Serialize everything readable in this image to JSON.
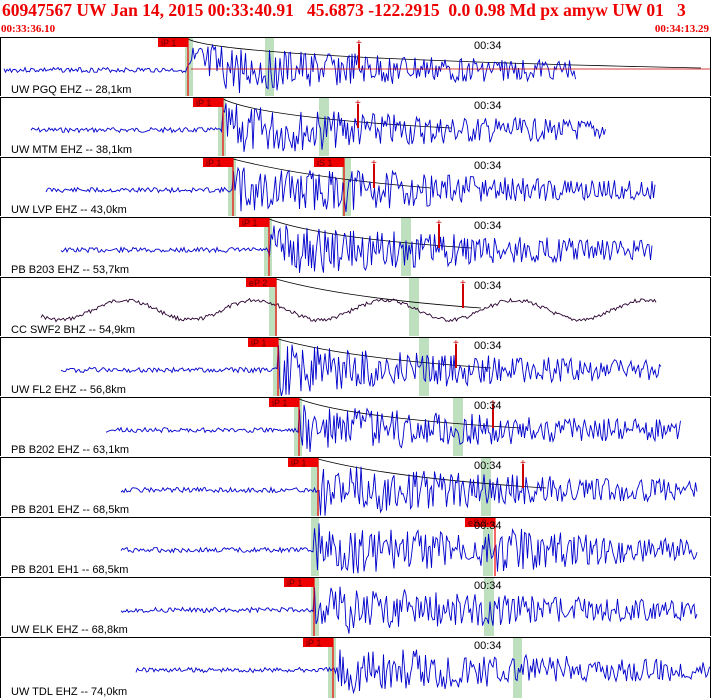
{
  "header": {
    "title": "60947567 UW Jan 14, 2015 00:33:40.91   45.6873 -122.2915  0.0 0.98 Md px amyw UW 01   3",
    "start_time": "00:33:36.10",
    "end_time": "00:34:13.29"
  },
  "colors": {
    "header_text": "#ee0000",
    "trace_blue": "#0000cc",
    "trace_dark": "#2a0030",
    "pick_marker": "#ee0000",
    "window_band": "#bfe0bf",
    "coda_curve": "#000000",
    "amp_line": "#cc0000"
  },
  "panels": [
    {
      "label": "UW PGQ EHZ -- 28,1km",
      "time_label": "00:34",
      "color": "trace_blue",
      "picks": [
        "iP 1"
      ],
      "seed": 3
    },
    {
      "label": "UW MTM EHZ -- 38,1km",
      "time_label": "00:34",
      "color": "trace_blue",
      "picks": [
        "iP 1"
      ],
      "seed": 7
    },
    {
      "label": "UW LVP EHZ -- 43,0km",
      "time_label": "00:34",
      "color": "trace_blue",
      "picks": [
        "iP 1",
        "iS 1"
      ],
      "seed": 11
    },
    {
      "label": "PB B203 EHZ -- 53,7km",
      "time_label": "00:34",
      "color": "trace_blue",
      "picks": [
        "iP 1"
      ],
      "seed": 13
    },
    {
      "label": "CC SWF2 BHZ -- 54,9km",
      "time_label": "00:34",
      "color": "trace_dark",
      "picks": [
        "eP 2"
      ],
      "seed": 17
    },
    {
      "label": "UW FL2 EHZ -- 56,8km",
      "time_label": "00:34",
      "color": "trace_blue",
      "picks": [
        "iP 1"
      ],
      "seed": 19
    },
    {
      "label": "PB B202 EHZ -- 63,1km",
      "time_label": "00:34",
      "color": "trace_blue",
      "picks": [
        "iP 1"
      ],
      "seed": 23
    },
    {
      "label": "PB B201 EHZ -- 68,5km",
      "time_label": "00:34",
      "color": "trace_blue",
      "picks": [
        "iP 1"
      ],
      "seed": 29
    },
    {
      "label": "PB B201 EH1 -- 68,5km",
      "time_label": "00:34",
      "color": "trace_blue",
      "picks": [
        "eS 2"
      ],
      "seed": 31
    },
    {
      "label": "UW ELK EHZ -- 68,8km",
      "time_label": "00:34",
      "color": "trace_blue",
      "picks": [
        "iP 1"
      ],
      "seed": 37
    },
    {
      "label": "UW TDL EHZ -- 74,0km",
      "time_label": "00:34",
      "color": "trace_blue",
      "picks": [
        "iP 1"
      ],
      "seed": 41
    }
  ]
}
